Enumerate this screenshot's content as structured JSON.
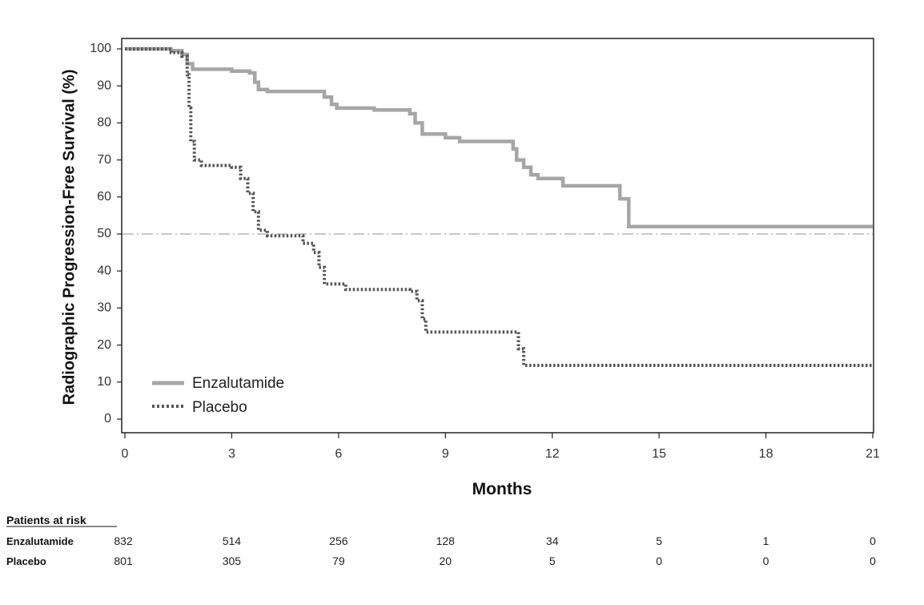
{
  "chart_data": {
    "type": "line",
    "subtype": "kaplan-meier",
    "title": "",
    "xlabel": "Months",
    "ylabel": "Radiographic Progression-Free Survival (%)",
    "xlim": [
      0,
      21
    ],
    "ylim": [
      0,
      100
    ],
    "xticks": [
      "0",
      "3",
      "6",
      "9",
      "12",
      "15",
      "18",
      "21"
    ],
    "yticks": [
      "0",
      "10",
      "20",
      "30",
      "40",
      "50",
      "60",
      "70",
      "80",
      "90",
      "100"
    ],
    "reference_line": {
      "y": 50,
      "style": "dash-dot"
    },
    "grid": false,
    "legend_position": "bottom-left",
    "series": [
      {
        "name": "Enzalutamide",
        "style": "solid",
        "color": "#a6a6a6",
        "steps": [
          [
            0,
            100
          ],
          [
            1.3,
            99.5
          ],
          [
            1.6,
            98.5
          ],
          [
            1.75,
            96
          ],
          [
            1.9,
            94.5
          ],
          [
            3.0,
            94
          ],
          [
            3.5,
            93.5
          ],
          [
            3.65,
            91
          ],
          [
            3.75,
            89
          ],
          [
            4.0,
            88.5
          ],
          [
            5.6,
            87
          ],
          [
            5.8,
            85
          ],
          [
            5.95,
            84
          ],
          [
            7.0,
            83.5
          ],
          [
            8.0,
            82.5
          ],
          [
            8.15,
            80
          ],
          [
            8.35,
            77
          ],
          [
            9.0,
            76
          ],
          [
            9.4,
            75
          ],
          [
            10.9,
            73
          ],
          [
            11.0,
            70
          ],
          [
            11.2,
            68
          ],
          [
            11.4,
            66
          ],
          [
            11.6,
            65
          ],
          [
            12.3,
            63
          ],
          [
            13.9,
            59.5
          ],
          [
            14.15,
            52
          ],
          [
            21.0,
            52
          ]
        ]
      },
      {
        "name": "Placebo",
        "style": "dotted",
        "color": "#555555",
        "steps": [
          [
            0,
            100
          ],
          [
            1.3,
            99
          ],
          [
            1.6,
            98
          ],
          [
            1.75,
            93
          ],
          [
            1.8,
            84
          ],
          [
            1.85,
            75
          ],
          [
            1.95,
            70
          ],
          [
            2.15,
            68.5
          ],
          [
            3.0,
            68
          ],
          [
            3.25,
            65
          ],
          [
            3.45,
            61
          ],
          [
            3.6,
            56
          ],
          [
            3.75,
            51
          ],
          [
            4.0,
            49.5
          ],
          [
            5.0,
            47.5
          ],
          [
            5.3,
            45
          ],
          [
            5.45,
            41
          ],
          [
            5.6,
            36.5
          ],
          [
            6.2,
            35
          ],
          [
            8.0,
            34.5
          ],
          [
            8.2,
            32
          ],
          [
            8.35,
            27
          ],
          [
            8.45,
            23.5
          ],
          [
            10.95,
            23.5
          ],
          [
            11.05,
            19
          ],
          [
            11.2,
            14.5
          ],
          [
            21.0,
            14.5
          ]
        ]
      }
    ],
    "risk_table": {
      "title": "Patients at risk",
      "groups": [
        {
          "name": "Enzalutamide",
          "counts": [
            "832",
            "514",
            "256",
            "128",
            "34",
            "5",
            "1",
            "0"
          ]
        },
        {
          "name": "Placebo",
          "counts": [
            "801",
            "305",
            "79",
            "20",
            "5",
            "0",
            "0",
            "0"
          ]
        }
      ]
    }
  }
}
